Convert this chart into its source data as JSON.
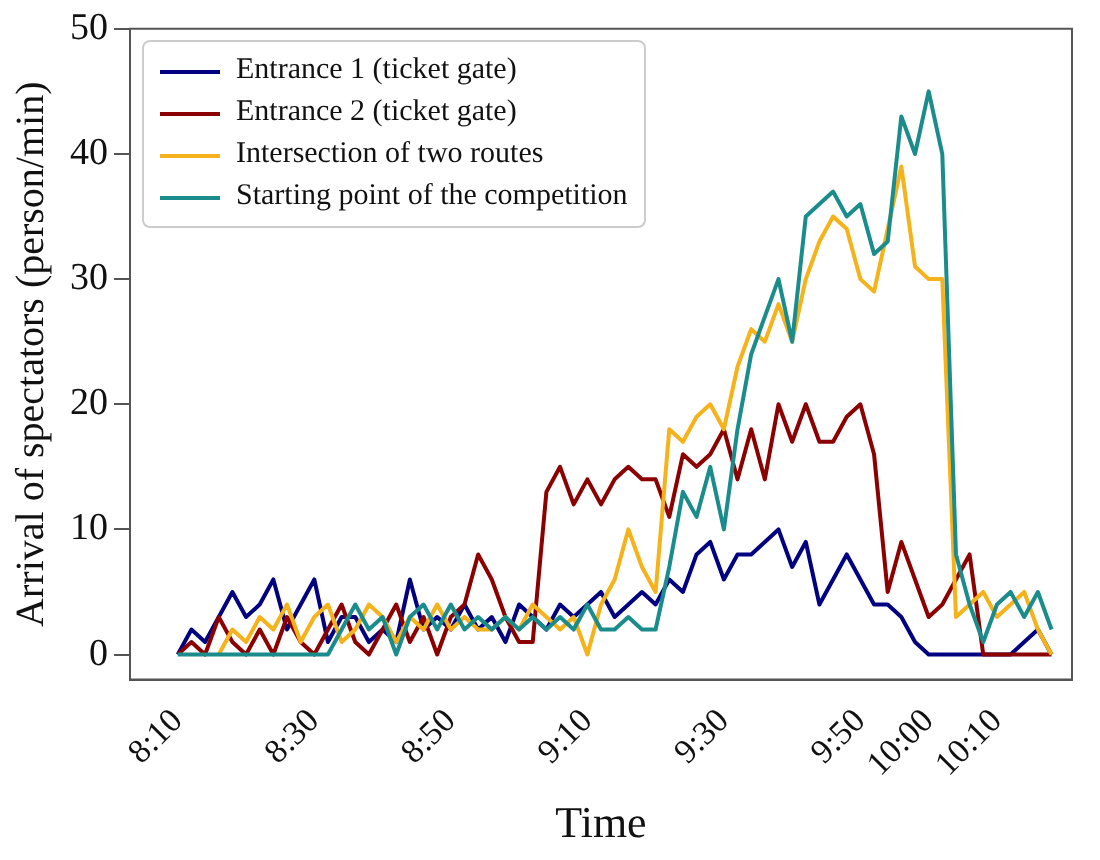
{
  "chart_data": {
    "type": "line",
    "xlabel": "Time",
    "ylabel": "Arrival of spectators (person/min)",
    "x": [
      8.1667,
      8.2,
      8.2333,
      8.2667,
      8.3,
      8.3333,
      8.3667,
      8.4,
      8.4333,
      8.4667,
      8.5,
      8.5333,
      8.5667,
      8.6,
      8.6333,
      8.6667,
      8.7,
      8.7333,
      8.7667,
      8.8,
      8.8333,
      8.8667,
      8.9,
      8.9333,
      8.9667,
      9,
      9.0333,
      9.0667,
      9.1,
      9.1333,
      9.1667,
      9.2,
      9.2333,
      9.2667,
      9.3,
      9.3333,
      9.3667,
      9.4,
      9.4333,
      9.4667,
      9.5,
      9.5333,
      9.5667,
      9.6,
      9.6333,
      9.6667,
      9.7,
      9.7333,
      9.7667,
      9.8,
      9.8333,
      9.8667,
      9.9,
      9.9333,
      9.9667,
      10,
      10.0333,
      10.0667,
      10.1,
      10.1333,
      10.1667,
      10.2,
      10.2333,
      10.2667,
      10.3
    ],
    "series": [
      {
        "name": "Entrance 1 (ticket gate)",
        "color": "#000080",
        "values": [
          0,
          2,
          1,
          3,
          5,
          3,
          4,
          6,
          2,
          4,
          6,
          1,
          3,
          3,
          1,
          2,
          1,
          6,
          2,
          3,
          2,
          4,
          2,
          3,
          1,
          4,
          3,
          2,
          4,
          3,
          4,
          5,
          3,
          4,
          5,
          4,
          6,
          5,
          8,
          9,
          6,
          8,
          8,
          9,
          10,
          7,
          9,
          4,
          6,
          8,
          6,
          4,
          4,
          3,
          1,
          0,
          0,
          0,
          0,
          0,
          null,
          0,
          1,
          2,
          0
        ]
      },
      {
        "name": "Entrance 2 (ticket gate)",
        "color": "#8b0000",
        "values": [
          0,
          1,
          0,
          3,
          1,
          0,
          2,
          0,
          3,
          1,
          0,
          2,
          4,
          1,
          0,
          2,
          4,
          1,
          3,
          0,
          3,
          4,
          8,
          6,
          3,
          1,
          1,
          13,
          15,
          12,
          14,
          12,
          14,
          15,
          14,
          14,
          11,
          16,
          15,
          16,
          18,
          14,
          18,
          14,
          20,
          17,
          20,
          17,
          17,
          19,
          20,
          16,
          5,
          9,
          6,
          3,
          4,
          6,
          8,
          0,
          0,
          0,
          0,
          0,
          0
        ]
      },
      {
        "name": "Intersection of two routes",
        "color": "#f5b21a",
        "values": [
          null,
          null,
          null,
          0,
          2,
          1,
          3,
          2,
          4,
          1,
          3,
          4,
          1,
          2,
          4,
          3,
          1,
          3,
          2,
          4,
          2,
          3,
          2,
          2,
          3,
          2,
          4,
          3,
          2,
          3,
          0,
          4,
          6,
          10,
          7,
          5,
          18,
          17,
          19,
          20,
          18,
          23,
          26,
          25,
          28,
          25,
          30,
          33,
          35,
          34,
          30,
          29,
          34,
          39,
          31,
          30,
          30,
          3,
          4,
          5,
          3,
          4,
          5,
          2,
          0
        ]
      },
      {
        "name": "Starting point of the competition",
        "color": "#1a8c8c",
        "values": [
          0,
          0,
          0,
          0,
          0,
          0,
          0,
          0,
          0,
          0,
          0,
          0,
          2,
          4,
          2,
          3,
          0,
          3,
          4,
          2,
          4,
          2,
          3,
          2,
          3,
          2,
          3,
          2,
          3,
          2,
          4,
          2,
          2,
          3,
          2,
          2,
          7,
          13,
          11,
          15,
          10,
          18,
          24,
          27,
          30,
          25,
          35,
          36,
          37,
          35,
          36,
          32,
          33,
          43,
          40,
          45,
          40,
          8,
          4,
          1,
          4,
          5,
          3,
          5,
          2
        ]
      }
    ],
    "xlim": [
      8.05,
      10.35
    ],
    "xticks": [
      {
        "value": 8.1667,
        "label": "8:10"
      },
      {
        "value": 8.5,
        "label": "8:30"
      },
      {
        "value": 8.8333,
        "label": "8:50"
      },
      {
        "value": 9.1667,
        "label": "9:10"
      },
      {
        "value": 9.5,
        "label": "9:30"
      },
      {
        "value": 9.8333,
        "label": "9:50"
      },
      {
        "value": 10,
        "label": "10:00"
      },
      {
        "value": 10.1667,
        "label": "10:10"
      }
    ],
    "ylim": [
      -2,
      50
    ],
    "yticks": [
      0,
      10,
      20,
      30,
      40,
      50
    ],
    "legend": "top left",
    "grid": false,
    "marker": "none",
    "line_style": "solid"
  }
}
